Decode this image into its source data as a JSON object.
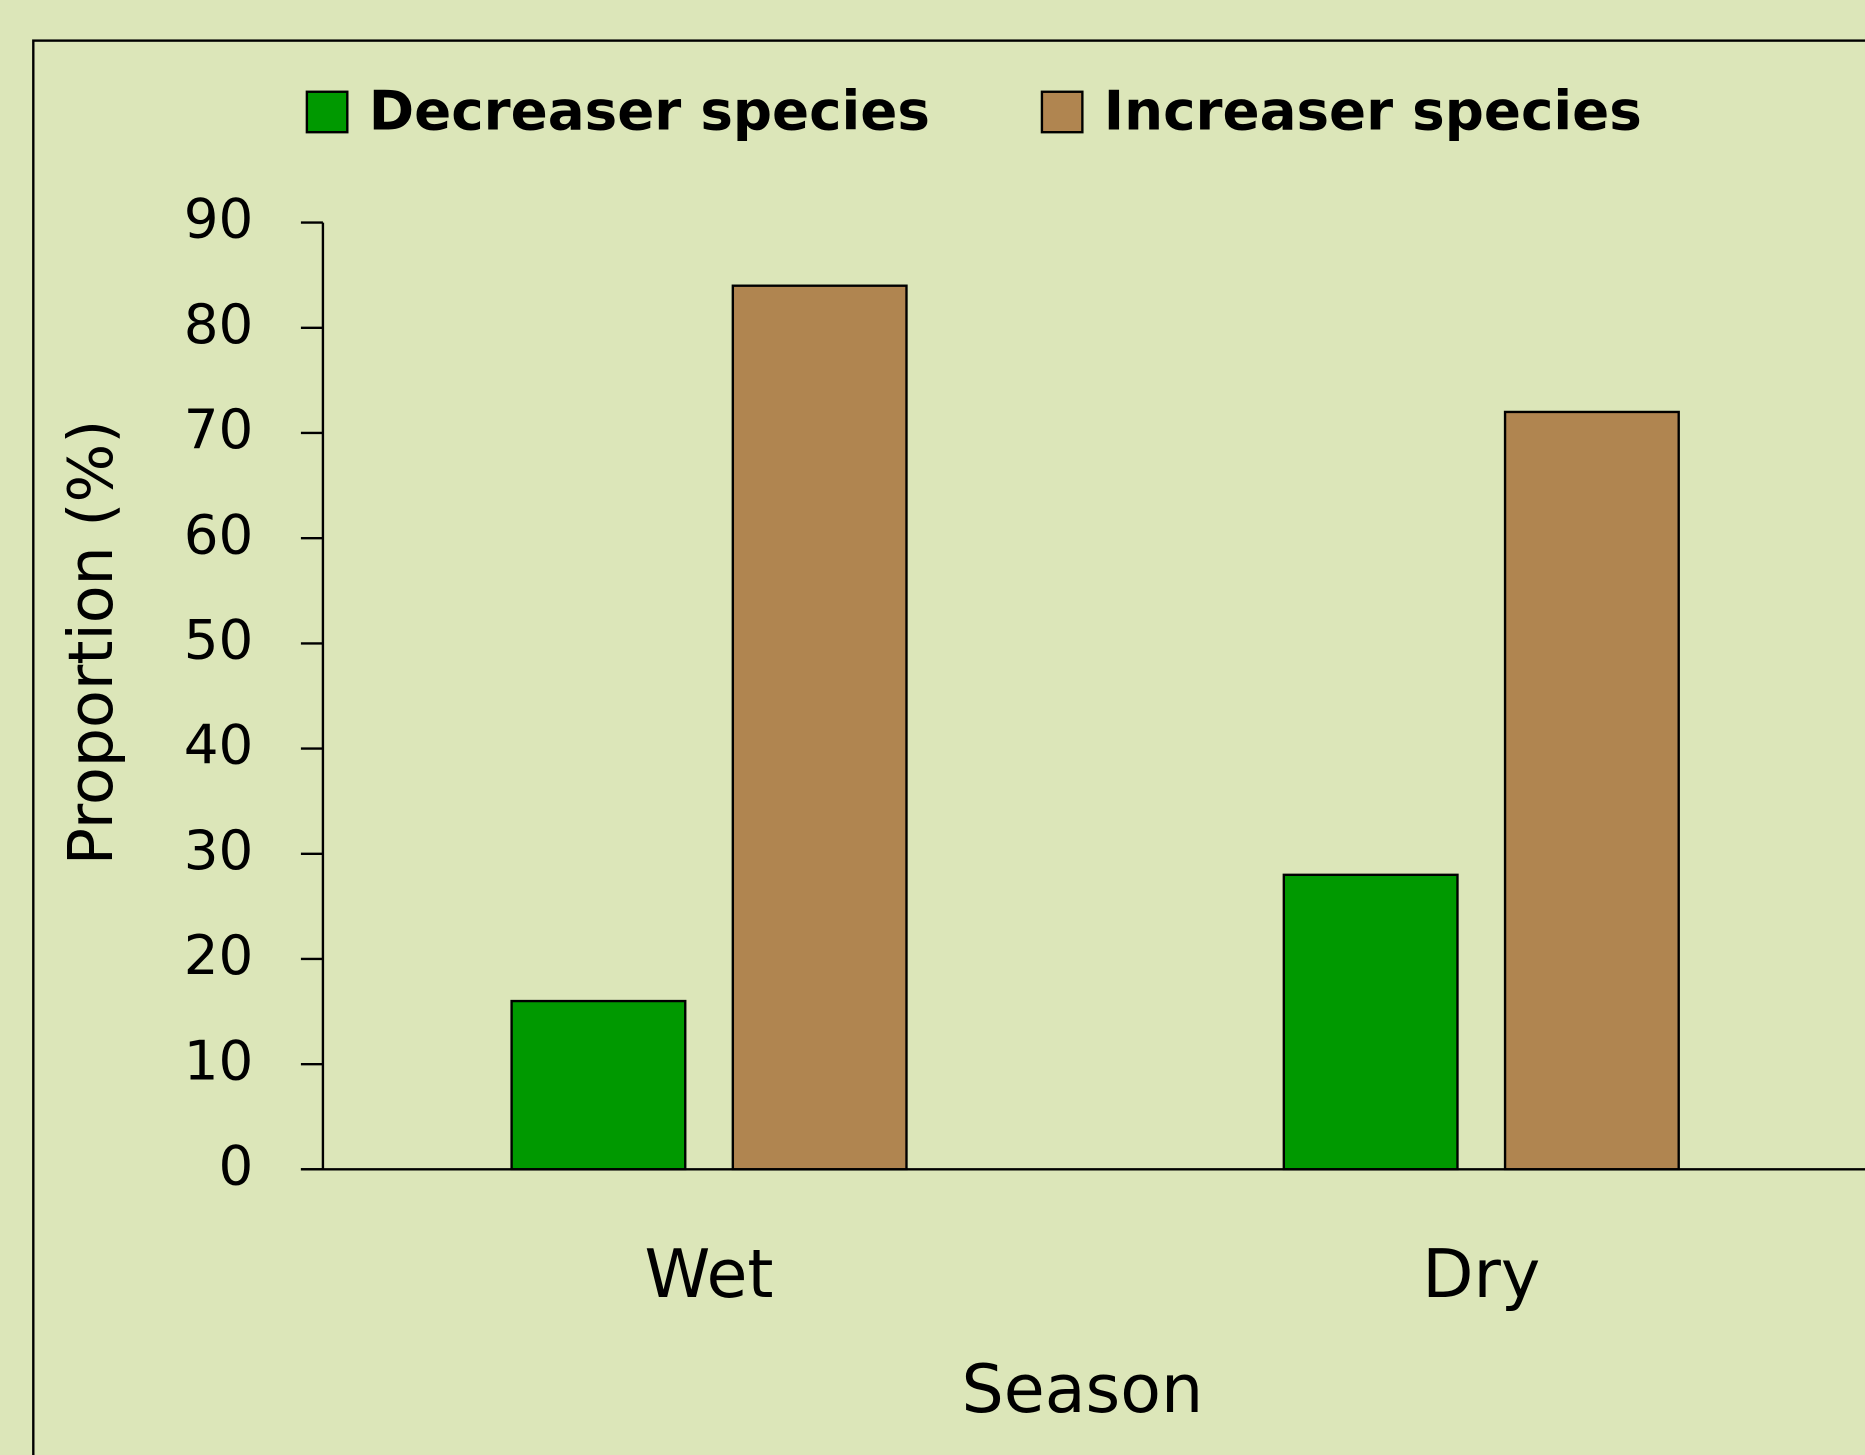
{
  "chart_data": {
    "type": "bar",
    "categories": [
      "Wet",
      "Dry"
    ],
    "series": [
      {
        "name": "Decreaser species",
        "color": "#009900",
        "values": [
          16,
          28
        ]
      },
      {
        "name": "Increaser species",
        "color": "#b08550",
        "values": [
          84,
          72
        ]
      }
    ],
    "xlabel": "Season",
    "ylabel": "Proportion (%)",
    "ylim": [
      0,
      90
    ],
    "yticks": [
      0,
      10,
      20,
      30,
      40,
      50,
      60,
      70,
      80,
      90
    ],
    "grid": false,
    "legend": "top"
  }
}
